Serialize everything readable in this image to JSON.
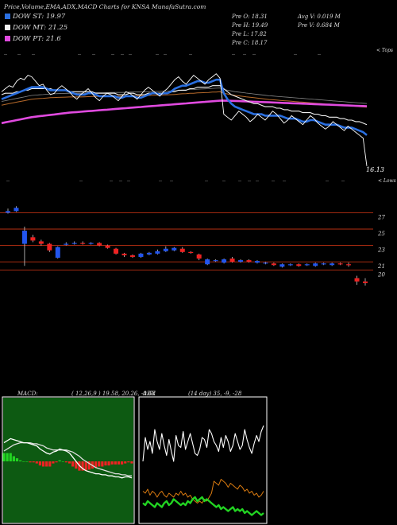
{
  "header": {
    "title": "Price,Volume,EMA,ADX,MACD Charts for KNSA MunafaSutra.com"
  },
  "legend": [
    {
      "label": "DOW ST: 19.97",
      "color": "#2a6fe0"
    },
    {
      "label": "DOW MT: 21.25",
      "color": "#f2f2f2"
    },
    {
      "label": "DOW PT: 21.6",
      "color": "#e04adf"
    }
  ],
  "quote": {
    "prev_open": "Pre  O: 18.31",
    "prev_high": "Pre  H: 19.49",
    "prev_low": "Pre  L: 17.82",
    "prev_close": "Pre  C: 18.17",
    "avg_volume": "Avg V: 0.019 M",
    "prev_volume": "Pre  V: 0.684  M"
  },
  "labels": {
    "tops": "< Tops",
    "lows": "< Lows",
    "last_price": "16.13"
  },
  "macd_panel": {
    "title": "MACD:",
    "params": "( 12,26,9 ) 19.58,  20.26,  -0.68"
  },
  "adx_panel": {
    "title": "ADX",
    "params": "(14  day) 35, -9, -28"
  },
  "chart_data": [
    {
      "type": "line",
      "name": "price-ema",
      "x_count": 98,
      "close": [
        21.1,
        21.3,
        21.5,
        21.4,
        21.8,
        22.0,
        21.9,
        22.2,
        22.1,
        21.8,
        21.5,
        21.6,
        21.2,
        20.9,
        21.0,
        21.3,
        21.5,
        21.3,
        21.1,
        20.8,
        20.6,
        20.9,
        21.1,
        21.3,
        21.0,
        20.7,
        20.5,
        20.8,
        21.0,
        20.9,
        20.7,
        20.5,
        20.8,
        21.1,
        21.0,
        20.8,
        20.6,
        20.9,
        21.2,
        21.4,
        21.2,
        21.0,
        20.8,
        21.1,
        21.3,
        21.6,
        21.9,
        22.1,
        21.8,
        21.6,
        21.9,
        22.2,
        22.0,
        21.8,
        21.6,
        21.9,
        22.1,
        22.3,
        22.0,
        19.6,
        19.4,
        19.2,
        19.5,
        19.8,
        19.6,
        19.4,
        19.1,
        19.3,
        19.6,
        19.4,
        19.2,
        19.5,
        19.8,
        19.6,
        19.3,
        19.0,
        19.2,
        19.5,
        19.3,
        19.1,
        18.9,
        19.2,
        19.5,
        19.3,
        19.0,
        18.8,
        18.6,
        18.8,
        19.1,
        18.9,
        18.7,
        18.5,
        18.8,
        18.6,
        18.4,
        18.2,
        18.0,
        16.13
      ],
      "ema_short": [
        20.6,
        20.7,
        20.8,
        20.9,
        21.0,
        21.1,
        21.2,
        21.3,
        21.4,
        21.4,
        21.4,
        21.4,
        21.3,
        21.2,
        21.2,
        21.2,
        21.2,
        21.2,
        21.1,
        21.0,
        20.9,
        20.9,
        20.9,
        21.0,
        21.0,
        20.9,
        20.8,
        20.8,
        20.8,
        20.8,
        20.8,
        20.7,
        20.7,
        20.8,
        20.8,
        20.8,
        20.7,
        20.7,
        20.8,
        20.9,
        21.0,
        21.0,
        20.9,
        21.0,
        21.0,
        21.1,
        21.3,
        21.4,
        21.5,
        21.5,
        21.6,
        21.7,
        21.8,
        21.8,
        21.7,
        21.7,
        21.8,
        21.9,
        21.9,
        21.0,
        20.6,
        20.3,
        20.1,
        20.0,
        19.9,
        19.8,
        19.7,
        19.6,
        19.6,
        19.6,
        19.5,
        19.5,
        19.5,
        19.5,
        19.5,
        19.4,
        19.3,
        19.3,
        19.3,
        19.2,
        19.1,
        19.1,
        19.2,
        19.2,
        19.1,
        19.0,
        18.9,
        18.9,
        18.9,
        18.9,
        18.8,
        18.7,
        18.7,
        18.7,
        18.6,
        18.5,
        18.4,
        18.2
      ],
      "ema_mid": [
        20.9,
        21.0,
        21.0,
        21.0,
        21.1,
        21.1,
        21.2,
        21.2,
        21.3,
        21.3,
        21.3,
        21.3,
        21.3,
        21.3,
        21.2,
        21.2,
        21.2,
        21.2,
        21.1,
        21.1,
        21.1,
        21.1,
        21.1,
        21.1,
        21.1,
        21.0,
        21.0,
        21.0,
        21.0,
        21.0,
        21.0,
        20.9,
        20.9,
        20.9,
        21.0,
        21.0,
        20.9,
        20.9,
        20.9,
        21.0,
        21.0,
        21.0,
        21.0,
        21.0,
        21.0,
        21.1,
        21.1,
        21.2,
        21.2,
        21.2,
        21.3,
        21.3,
        21.4,
        21.4,
        21.4,
        21.4,
        21.5,
        21.5,
        21.5,
        21.3,
        21.1,
        20.9,
        20.8,
        20.7,
        20.6,
        20.5,
        20.4,
        20.3,
        20.3,
        20.2,
        20.1,
        20.1,
        20.1,
        20.0,
        20.0,
        19.9,
        19.9,
        19.8,
        19.8,
        19.8,
        19.7,
        19.7,
        19.7,
        19.6,
        19.6,
        19.5,
        19.5,
        19.4,
        19.4,
        19.4,
        19.3,
        19.3,
        19.2,
        19.2,
        19.1,
        19.1,
        19.0,
        18.9
      ],
      "ema_long": [
        20.2,
        20.25,
        20.3,
        20.35,
        20.4,
        20.45,
        20.5,
        20.55,
        20.6,
        20.62,
        20.64,
        20.66,
        20.68,
        20.7,
        20.71,
        20.72,
        20.73,
        20.74,
        20.75,
        20.75,
        20.75,
        20.75,
        20.76,
        20.77,
        20.78,
        20.78,
        20.78,
        20.78,
        20.79,
        20.8,
        20.8,
        20.8,
        20.8,
        20.81,
        20.82,
        20.83,
        20.83,
        20.83,
        20.84,
        20.85,
        20.86,
        20.87,
        20.87,
        20.88,
        20.89,
        20.9,
        20.92,
        20.94,
        20.96,
        20.97,
        20.99,
        21.0,
        21.02,
        21.03,
        21.04,
        21.05,
        21.07,
        21.08,
        21.1,
        21.0,
        20.95,
        20.9,
        20.85,
        20.82,
        20.79,
        20.76,
        20.73,
        20.7,
        20.67,
        20.64,
        20.61,
        20.58,
        20.56,
        20.54,
        20.52,
        20.5,
        20.48,
        20.46,
        20.44,
        20.42,
        20.4,
        20.38,
        20.36,
        20.34,
        20.32,
        20.3,
        20.28,
        20.26,
        20.24,
        20.22,
        20.2,
        20.18,
        20.16,
        20.14,
        20.12,
        20.1,
        20.08,
        20.06
      ],
      "ema_pt": [
        19.0,
        19.05,
        19.1,
        19.15,
        19.2,
        19.25,
        19.3,
        19.35,
        19.4,
        19.43,
        19.46,
        19.49,
        19.52,
        19.55,
        19.58,
        19.61,
        19.64,
        19.67,
        19.7,
        19.72,
        19.74,
        19.76,
        19.78,
        19.8,
        19.82,
        19.84,
        19.86,
        19.88,
        19.9,
        19.92,
        19.94,
        19.96,
        19.98,
        20.0,
        20.02,
        20.04,
        20.06,
        20.08,
        20.1,
        20.12,
        20.14,
        20.16,
        20.18,
        20.2,
        20.22,
        20.24,
        20.26,
        20.28,
        20.3,
        20.32,
        20.34,
        20.36,
        20.38,
        20.4,
        20.42,
        20.44,
        20.46,
        20.48,
        20.5,
        20.5,
        20.5,
        20.49,
        20.48,
        20.47,
        20.46,
        20.45,
        20.44,
        20.43,
        20.42,
        20.41,
        20.4,
        20.39,
        20.38,
        20.37,
        20.36,
        20.35,
        20.34,
        20.33,
        20.32,
        20.31,
        20.3,
        20.29,
        20.28,
        20.27,
        20.26,
        20.25,
        20.24,
        20.23,
        20.22,
        20.21,
        20.2,
        20.19,
        20.18,
        20.17,
        20.16,
        20.15,
        20.14,
        20.13
      ],
      "y_range": [
        15.8,
        23.4
      ]
    },
    {
      "type": "candlestick",
      "name": "price-candles",
      "y_ticks": [
        "27",
        "25",
        "23",
        "21",
        "20"
      ],
      "candles": [
        {
          "o": 27.0,
          "c": 27.2,
          "h": 27.5,
          "l": 26.9
        },
        {
          "o": 27.2,
          "c": 27.6,
          "h": 27.8,
          "l": 27.1
        },
        {
          "o": 23.2,
          "c": 24.8,
          "h": 25.3,
          "l": 20.5
        },
        {
          "o": 24.0,
          "c": 23.6,
          "h": 24.3,
          "l": 23.4
        },
        {
          "o": 23.5,
          "c": 23.2,
          "h": 23.7,
          "l": 23.0
        },
        {
          "o": 23.2,
          "c": 22.4,
          "h": 23.3,
          "l": 22.2
        },
        {
          "o": 21.5,
          "c": 22.8,
          "h": 22.9,
          "l": 21.4
        },
        {
          "o": 23.1,
          "c": 23.2,
          "h": 23.4,
          "l": 23.0
        },
        {
          "o": 23.2,
          "c": 23.3,
          "h": 23.5,
          "l": 23.1
        },
        {
          "o": 23.3,
          "c": 23.2,
          "h": 23.5,
          "l": 23.1
        },
        {
          "o": 23.2,
          "c": 23.3,
          "h": 23.4,
          "l": 23.1
        },
        {
          "o": 23.3,
          "c": 23.0,
          "h": 23.4,
          "l": 22.9
        },
        {
          "o": 23.0,
          "c": 22.7,
          "h": 23.1,
          "l": 22.6
        },
        {
          "o": 22.6,
          "c": 22.0,
          "h": 22.7,
          "l": 21.9
        },
        {
          "o": 22.0,
          "c": 21.8,
          "h": 22.1,
          "l": 21.6
        },
        {
          "o": 21.8,
          "c": 21.6,
          "h": 21.9,
          "l": 21.5
        },
        {
          "o": 21.6,
          "c": 22.0,
          "h": 22.1,
          "l": 21.5
        },
        {
          "o": 21.9,
          "c": 22.1,
          "h": 22.2,
          "l": 21.8
        },
        {
          "o": 22.0,
          "c": 22.3,
          "h": 22.5,
          "l": 21.9
        },
        {
          "o": 22.3,
          "c": 22.6,
          "h": 22.9,
          "l": 22.2
        },
        {
          "o": 22.4,
          "c": 22.7,
          "h": 22.8,
          "l": 22.3
        },
        {
          "o": 22.6,
          "c": 22.2,
          "h": 22.8,
          "l": 22.1
        },
        {
          "o": 22.2,
          "c": 22.1,
          "h": 22.3,
          "l": 22.0
        },
        {
          "o": 21.9,
          "c": 21.4,
          "h": 22.0,
          "l": 21.2
        },
        {
          "o": 20.7,
          "c": 21.3,
          "h": 21.4,
          "l": 20.6
        },
        {
          "o": 21.1,
          "c": 21.2,
          "h": 21.3,
          "l": 21.0
        },
        {
          "o": 20.9,
          "c": 21.3,
          "h": 21.4,
          "l": 20.8
        },
        {
          "o": 21.4,
          "c": 21.0,
          "h": 21.6,
          "l": 20.9
        },
        {
          "o": 21.0,
          "c": 21.2,
          "h": 21.3,
          "l": 20.9
        },
        {
          "o": 21.2,
          "c": 21.0,
          "h": 21.3,
          "l": 20.9
        },
        {
          "o": 20.9,
          "c": 21.1,
          "h": 21.2,
          "l": 20.8
        },
        {
          "o": 20.8,
          "c": 20.9,
          "h": 21.0,
          "l": 20.7
        },
        {
          "o": 20.8,
          "c": 20.6,
          "h": 20.9,
          "l": 20.5
        },
        {
          "o": 20.4,
          "c": 20.7,
          "h": 20.8,
          "l": 20.3
        },
        {
          "o": 20.6,
          "c": 20.7,
          "h": 20.8,
          "l": 20.5
        },
        {
          "o": 20.7,
          "c": 20.5,
          "h": 20.8,
          "l": 20.4
        },
        {
          "o": 20.6,
          "c": 20.7,
          "h": 20.8,
          "l": 20.5
        },
        {
          "o": 20.5,
          "c": 20.8,
          "h": 20.9,
          "l": 20.4
        },
        {
          "o": 20.7,
          "c": 20.8,
          "h": 20.9,
          "l": 20.6
        },
        {
          "o": 20.6,
          "c": 20.8,
          "h": 20.9,
          "l": 20.5
        },
        {
          "o": 20.8,
          "c": 20.7,
          "h": 20.9,
          "l": 20.6
        },
        {
          "o": 20.7,
          "c": 20.6,
          "h": 20.9,
          "l": 20.4
        },
        {
          "o": 19.0,
          "c": 18.6,
          "h": 19.3,
          "l": 18.2
        },
        {
          "o": 18.6,
          "c": 18.4,
          "h": 19.0,
          "l": 18.1
        }
      ]
    },
    {
      "type": "line",
      "name": "macd",
      "values_macd": [
        0.18,
        0.2,
        0.22,
        0.21,
        0.2,
        0.19,
        0.18,
        0.18,
        0.17,
        0.16,
        0.15,
        0.12,
        0.1,
        0.08,
        0.07,
        0.09,
        0.1,
        0.12,
        0.11,
        0.1,
        0.08,
        0.04,
        0.0,
        -0.04,
        -0.07,
        -0.09,
        -0.1,
        -0.11,
        -0.12,
        -0.12,
        -0.13,
        -0.13,
        -0.14,
        -0.14,
        -0.15,
        -0.15,
        -0.16,
        -0.15,
        -0.15,
        -0.16
      ],
      "values_signal": [
        0.1,
        0.12,
        0.14,
        0.16,
        0.17,
        0.18,
        0.18,
        0.18,
        0.18,
        0.17,
        0.17,
        0.16,
        0.15,
        0.13,
        0.12,
        0.11,
        0.11,
        0.11,
        0.11,
        0.11,
        0.1,
        0.09,
        0.07,
        0.05,
        0.02,
        0.0,
        -0.02,
        -0.04,
        -0.06,
        -0.07,
        -0.08,
        -0.09,
        -0.1,
        -0.11,
        -0.12,
        -0.12,
        -0.13,
        -0.13,
        -0.14,
        -0.14
      ],
      "histogram": [
        0.08,
        0.08,
        0.08,
        0.05,
        0.03,
        0.01,
        0.0,
        0.0,
        -0.01,
        -0.01,
        -0.02,
        -0.04,
        -0.05,
        -0.05,
        -0.05,
        -0.02,
        -0.01,
        0.01,
        0.0,
        -0.01,
        -0.02,
        -0.05,
        -0.07,
        -0.09,
        -0.09,
        -0.09,
        -0.08,
        -0.07,
        -0.06,
        -0.05,
        -0.05,
        -0.04,
        -0.04,
        -0.03,
        -0.03,
        -0.03,
        -0.03,
        -0.02,
        -0.01,
        -0.02
      ],
      "y_range": [
        -0.6,
        0.6
      ]
    },
    {
      "type": "line",
      "name": "adx",
      "adx": [
        30,
        42,
        36,
        40,
        34,
        46,
        40,
        36,
        44,
        38,
        33,
        41,
        35,
        30,
        43,
        38,
        37,
        45,
        36,
        40,
        44,
        39,
        34,
        33,
        36,
        42,
        41,
        37,
        46,
        44,
        40,
        38,
        35,
        42,
        37,
        43,
        40,
        35,
        38,
        44,
        40,
        36,
        38,
        46,
        41,
        37,
        34,
        39,
        43,
        40,
        45,
        48
      ],
      "di_plus": [
        15,
        14,
        16,
        13,
        15,
        14,
        12,
        14,
        15,
        13,
        12,
        14,
        13,
        12,
        14,
        13,
        15,
        13,
        14,
        12,
        13,
        11,
        10,
        9,
        10,
        9,
        11,
        10,
        12,
        14,
        20,
        19,
        18,
        21,
        20,
        19,
        17,
        19,
        18,
        17,
        16,
        18,
        17,
        15,
        16,
        14,
        15,
        13,
        14,
        12,
        13,
        15
      ],
      "di_minus": [
        9,
        8,
        10,
        9,
        8,
        7,
        9,
        8,
        7,
        9,
        10,
        8,
        9,
        11,
        10,
        9,
        8,
        9,
        8,
        10,
        9,
        11,
        12,
        10,
        11,
        12,
        10,
        11,
        10,
        9,
        8,
        7,
        8,
        6,
        7,
        6,
        5,
        6,
        7,
        5,
        6,
        5,
        6,
        4,
        5,
        4,
        3,
        4,
        5,
        4,
        3,
        4
      ],
      "y_range": [
        0,
        60
      ]
    }
  ],
  "colors": {
    "bull": "#2255ee",
    "bear": "#ee2222",
    "short": "#2a6fe0",
    "mid": "#f2f2f2",
    "long": "#b86a2a",
    "pt": "#e04adf",
    "macd_up": "#22d422",
    "macd_down": "#ee2222",
    "grid": "#b82f12",
    "panel_frame": "#ffffff",
    "adx_line": "#ffffff",
    "di_plus": "#d97a10",
    "di_minus": "#22d422"
  }
}
